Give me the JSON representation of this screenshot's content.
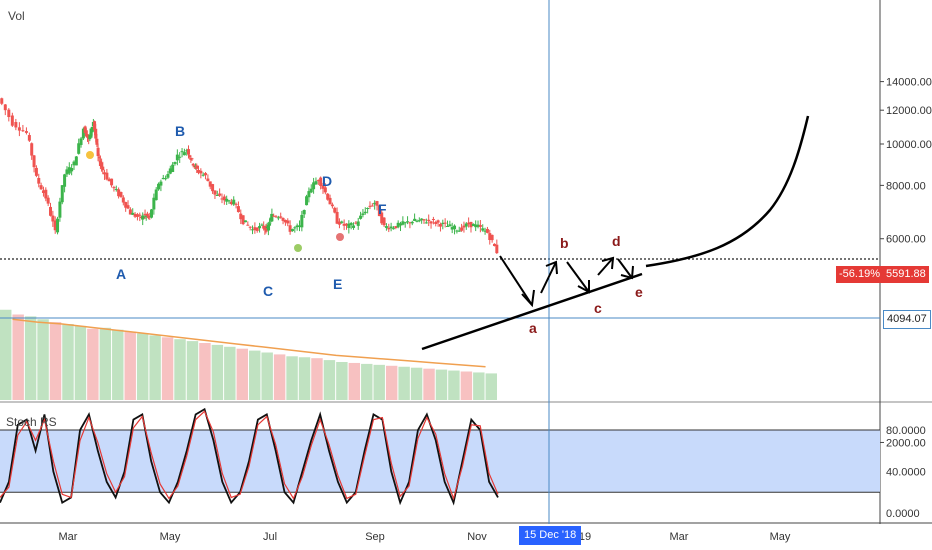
{
  "chart_data": [
    {
      "type": "candlestick",
      "title": "",
      "pane_label": "Vol",
      "y_scale": "log",
      "ylim": [
        1500,
        16000
      ],
      "y_ticks": [
        "14000.00",
        "12000.00",
        "10000.00",
        "8000.00",
        "6000.00",
        "2000.00"
      ],
      "y_tick_values": [
        14000,
        12000,
        10000,
        8000,
        6000,
        2000
      ],
      "x_tick_labels": [
        "Mar",
        "May",
        "Jul",
        "Sep",
        "Nov",
        "19",
        "Mar",
        "May"
      ],
      "crosshair": {
        "date_label": "15 Dec '18",
        "price_label": "4094.07",
        "price": 4094.07
      },
      "last_price": {
        "change": "-56.19%",
        "price": "5591.88",
        "value": 5591.88
      },
      "support_level": 6000,
      "price_path": [
        [
          0,
          12800
        ],
        [
          3,
          11200
        ],
        [
          6,
          10600
        ],
        [
          8,
          8300
        ],
        [
          10,
          7500
        ],
        [
          12,
          6200
        ],
        [
          14,
          8500
        ],
        [
          16,
          9000
        ],
        [
          18,
          10900
        ],
        [
          19,
          10200
        ],
        [
          20,
          11300
        ],
        [
          21,
          9300
        ],
        [
          22,
          8700
        ],
        [
          24,
          8000
        ],
        [
          26,
          7500
        ],
        [
          28,
          6900
        ],
        [
          30,
          6700
        ],
        [
          31,
          6800
        ],
        [
          32,
          6700
        ],
        [
          34,
          8100
        ],
        [
          36,
          8500
        ],
        [
          38,
          9400
        ],
        [
          40,
          9700
        ],
        [
          41,
          9100
        ],
        [
          42,
          8700
        ],
        [
          44,
          8400
        ],
        [
          46,
          7600
        ],
        [
          48,
          7400
        ],
        [
          50,
          7300
        ],
        [
          52,
          6600
        ],
        [
          54,
          6300
        ],
        [
          56,
          6400
        ],
        [
          57,
          6300
        ],
        [
          58,
          6800
        ],
        [
          60,
          6800
        ],
        [
          62,
          6300
        ],
        [
          64,
          6400
        ],
        [
          66,
          7800
        ],
        [
          68,
          8300
        ],
        [
          70,
          7500
        ],
        [
          72,
          6600
        ],
        [
          74,
          6400
        ],
        [
          76,
          6500
        ],
        [
          78,
          7000
        ],
        [
          80,
          7300
        ],
        [
          82,
          6400
        ],
        [
          84,
          6400
        ],
        [
          86,
          6500
        ],
        [
          88,
          6600
        ],
        [
          90,
          6600
        ],
        [
          92,
          6600
        ],
        [
          94,
          6500
        ],
        [
          96,
          6400
        ],
        [
          98,
          6300
        ],
        [
          100,
          6500
        ],
        [
          102,
          6400
        ],
        [
          104,
          6200
        ],
        [
          106,
          5600
        ]
      ],
      "wave_labels_blue": [
        "A",
        "B",
        "C",
        "D",
        "E",
        "F"
      ],
      "wave_labels_red": [
        "a",
        "b",
        "c",
        "d",
        "e"
      ],
      "volume": {
        "bars": [
          95,
          90,
          88,
          85,
          82,
          80,
          78,
          75,
          76,
          74,
          72,
          70,
          68,
          66,
          64,
          62,
          60,
          58,
          56,
          54,
          52,
          50,
          48,
          46,
          45,
          44,
          42,
          40,
          39,
          38,
          37,
          36,
          35,
          34,
          33,
          32,
          31,
          30,
          29,
          28
        ],
        "ma": [
          85,
          82,
          80,
          77,
          74,
          71,
          68,
          65,
          62,
          59,
          56,
          53,
          50,
          47,
          45,
          43,
          41,
          39,
          37,
          35
        ]
      }
    },
    {
      "type": "line",
      "title": "Stoch RSI",
      "pane_label": "Stoch RS",
      "ylim": [
        0,
        100
      ],
      "y_ticks": [
        "80.0000",
        "40.0000",
        "0.0000"
      ],
      "y_tick_values": [
        80,
        40,
        0
      ],
      "band": [
        20,
        80
      ],
      "series": [
        {
          "values": [
            10,
            30,
            85,
            90,
            60,
            95,
            40,
            10,
            15,
            80,
            95,
            60,
            30,
            15,
            40,
            90,
            95,
            50,
            20,
            10,
            30,
            60,
            95,
            100,
            70,
            30,
            10,
            20,
            50,
            90,
            95,
            60,
            20,
            10,
            40,
            70,
            95,
            60,
            30,
            10,
            20,
            60,
            95,
            90,
            40,
            10,
            30,
            80,
            95,
            70,
            30,
            10,
            50,
            90,
            80,
            30,
            15
          ]
        },
        {
          "values": [
            15,
            25,
            75,
            88,
            70,
            90,
            50,
            18,
            15,
            70,
            92,
            68,
            38,
            20,
            35,
            82,
            93,
            58,
            28,
            14,
            26,
            55,
            90,
            98,
            78,
            38,
            15,
            18,
            45,
            85,
            93,
            66,
            28,
            14,
            35,
            65,
            90,
            66,
            36,
            14,
            18,
            55,
            90,
            92,
            48,
            16,
            26,
            72,
            92,
            76,
            38,
            14,
            45,
            85,
            84,
            38,
            18
          ]
        }
      ]
    }
  ],
  "colors": {
    "up": "#26a69a",
    "up_bright": "#3cb44b",
    "down": "#ef5350",
    "crosshair": "#4a8ac6",
    "badge_blue": "#2962ff",
    "badge_red": "#e53935",
    "band": "#c8dafb",
    "wave_blue": "#1f5bae",
    "wave_red": "#8b1a1a"
  }
}
